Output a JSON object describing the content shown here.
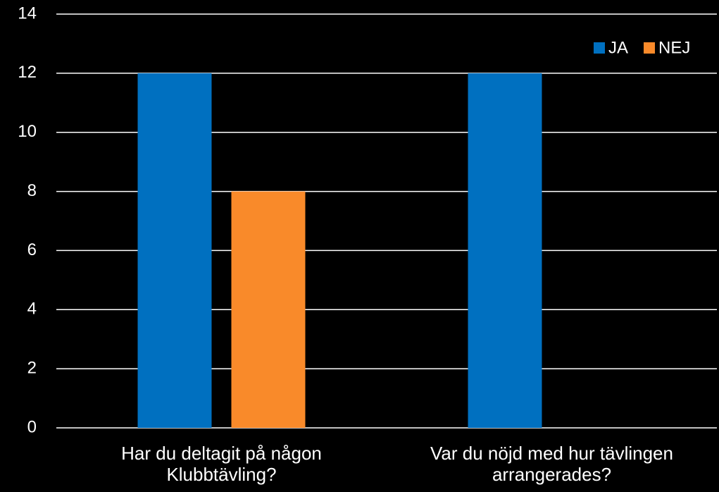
{
  "chart_data": {
    "type": "bar",
    "categories": [
      "Har du deltagit på någon Klubbtävling?",
      "Var du nöjd med hur tävlingen arrangerades?"
    ],
    "series": [
      {
        "name": "JA",
        "color": "#0070c0",
        "values": [
          12,
          12
        ]
      },
      {
        "name": "NEJ",
        "color": "#f98a2a",
        "values": [
          8,
          0
        ]
      }
    ],
    "ylim": [
      0,
      14
    ],
    "yticks": [
      0,
      2,
      4,
      6,
      8,
      10,
      12,
      14
    ],
    "grid": true,
    "legend": "top-right"
  }
}
